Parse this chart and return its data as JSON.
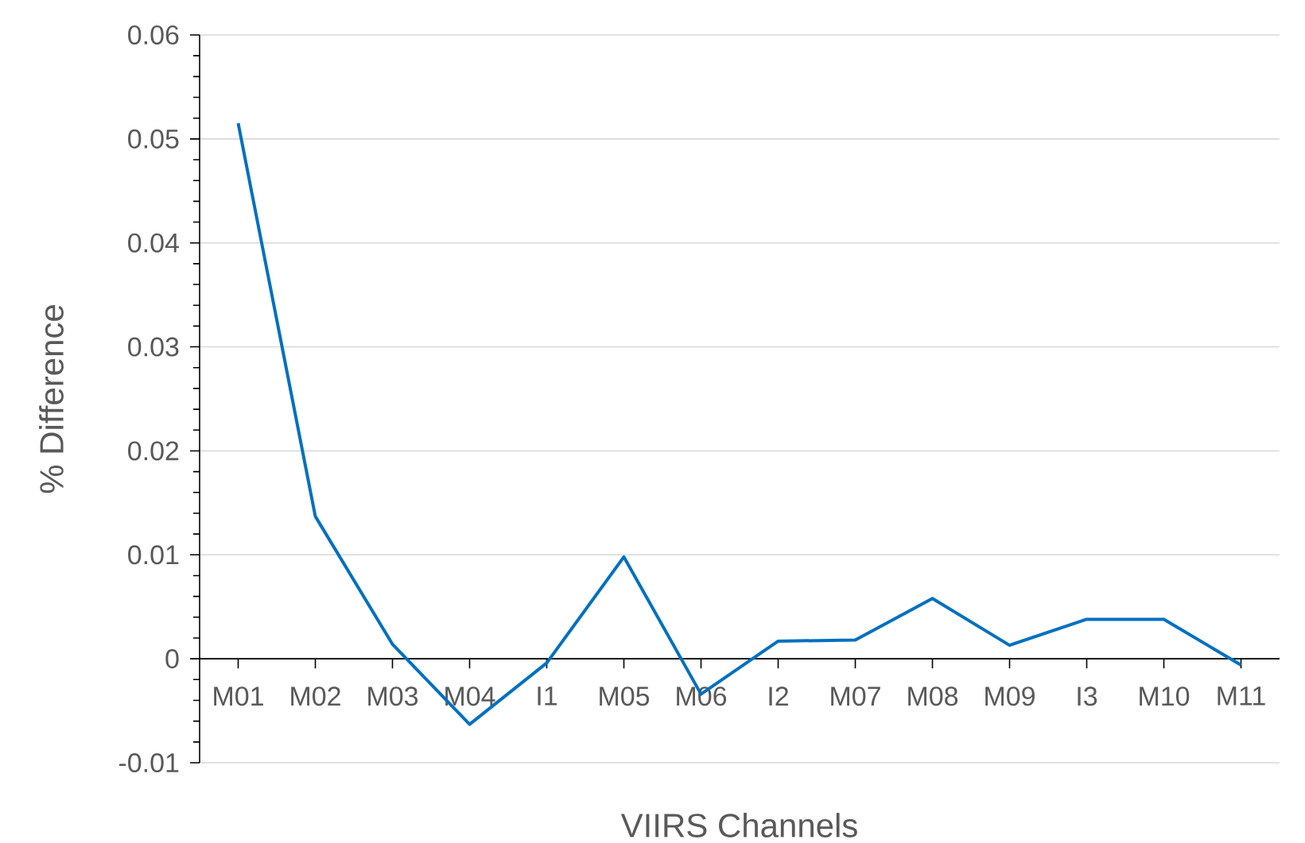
{
  "chart_data": {
    "type": "line",
    "xlabel": "VIIRS Channels",
    "ylabel": "% Difference",
    "categories": [
      "M01",
      "M02",
      "M03",
      "M04",
      "I1",
      "M05",
      "M06",
      "I2",
      "M07",
      "M08",
      "M09",
      "I3",
      "M10",
      "M11"
    ],
    "values": [
      0.0515,
      0.0137,
      0.0014,
      -0.0063,
      -0.0004,
      0.0098,
      -0.0034,
      0.0017,
      0.0018,
      0.0058,
      0.0013,
      0.0038,
      0.0038,
      -0.0006
    ],
    "color": "#0070c0",
    "ylim": [
      -0.01,
      0.06
    ],
    "yticks": [
      -0.01,
      0,
      0.01,
      0.02,
      0.03,
      0.04,
      0.05,
      0.06
    ],
    "grid": "y"
  }
}
